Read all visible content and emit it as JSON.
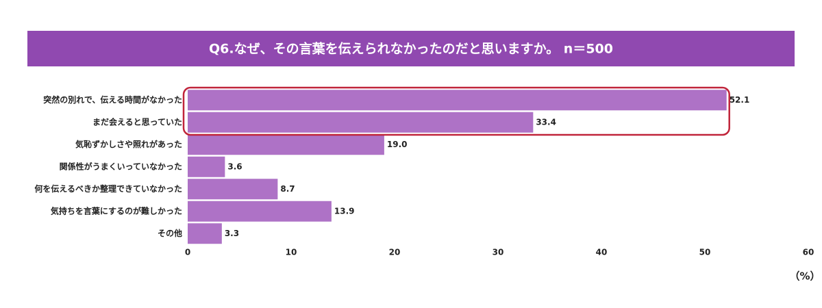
{
  "chart_data": {
    "type": "bar",
    "orientation": "horizontal",
    "title": "Q6.なぜ、その言葉を伝えられなかったのだと思いますか。 n＝500",
    "categories": [
      "突然の別れで、伝える時間がなかった",
      "まだ会えると思っていた",
      "気恥ずかしさや照れがあった",
      "関係性がうまくいっていなかった",
      "何を伝えるべきか整理できていなかった",
      "気持ちを言葉にするのが難しかった",
      "その他"
    ],
    "values": [
      52.1,
      33.4,
      19.0,
      3.6,
      8.7,
      13.9,
      3.3
    ],
    "value_labels": [
      "52.1",
      "33.4",
      "19.0",
      "3.6",
      "8.7",
      "13.9",
      "3.3"
    ],
    "color": "#ae72c6",
    "xlim": [
      0,
      60
    ],
    "xticks": [
      0,
      10,
      20,
      30,
      40,
      50,
      60
    ],
    "xlabel": "（%）"
  }
}
